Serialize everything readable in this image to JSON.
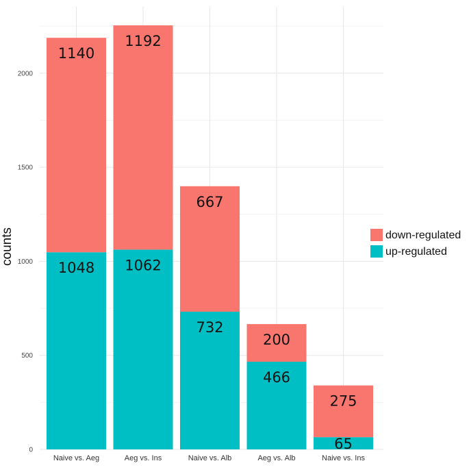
{
  "chart_data": {
    "type": "bar",
    "stacked": true,
    "title": "",
    "xlabel": "",
    "ylabel": "counts",
    "categories": [
      "Naive vs. Aeg",
      "Aeg vs. Ins",
      "Naive vs. Alb",
      "Aeg vs. Alb",
      "Naive vs. Ins"
    ],
    "series": [
      {
        "name": "up-regulated",
        "color": "#00BFC4",
        "values": [
          1048,
          1062,
          732,
          466,
          65
        ]
      },
      {
        "name": "down-regulated",
        "color": "#F8766D",
        "values": [
          1140,
          1192,
          667,
          200,
          275
        ]
      }
    ],
    "ylim": [
      0,
      2300
    ],
    "yticks": [
      0,
      500,
      1000,
      1500,
      2000
    ],
    "grid": true,
    "legend": {
      "position": "right",
      "entries": [
        {
          "label": "down-regulated",
          "color": "#F8766D"
        },
        {
          "label": "up-regulated",
          "color": "#00BFC4"
        }
      ]
    }
  }
}
